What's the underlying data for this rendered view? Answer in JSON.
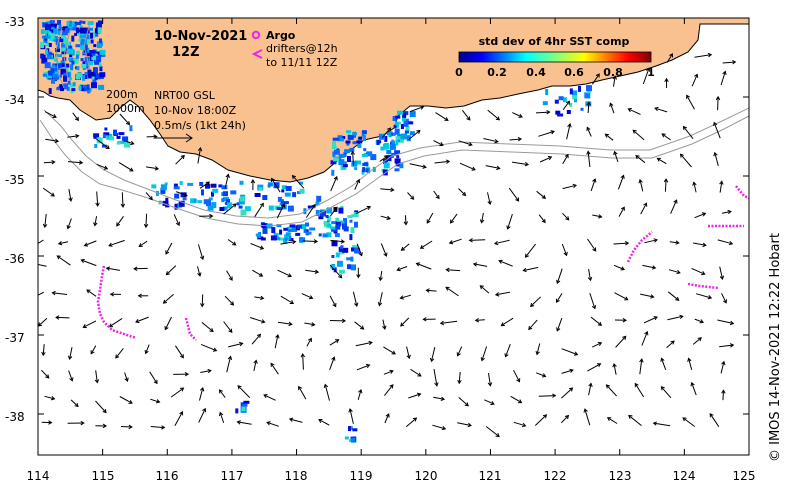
{
  "map": {
    "title_date": "10-Nov-2021",
    "title_time": "12Z",
    "lon_ticks": [
      "114",
      "115",
      "116",
      "117",
      "118",
      "119",
      "120",
      "121",
      "122",
      "123",
      "124",
      "125"
    ],
    "lat_ticks": [
      "-33",
      "-34",
      "-35",
      "-36",
      "-37",
      "-38"
    ],
    "lon_range": [
      114,
      125
    ],
    "lat_range": [
      -38.5,
      -33
    ],
    "colors": {
      "land": "#f9c18f",
      "coast": "#000000",
      "isobath": "#9a9a9a",
      "argo": "#ee22ee",
      "drifter": "#ee22ee",
      "arrow": "#000000"
    }
  },
  "isobaths": {
    "label_200": "200m",
    "label_1000": "1000m"
  },
  "current_product": {
    "name": "NRT00 GSL",
    "time": "10-Nov 18:00Z",
    "scale": "0.5m/s (1kt 24h)"
  },
  "legend": {
    "argo_label": "Argo",
    "drifters_label": "drifters@12h",
    "drifters_label2": "to 11/11 12Z"
  },
  "colorbar": {
    "title": "std dev of 4hr SST comp",
    "ticks": [
      "0",
      "0.2",
      "0.4",
      "0.6",
      "0.8",
      "1"
    ]
  },
  "credit": "© IMOS 14-Nov-2021 12:22 Hobart"
}
